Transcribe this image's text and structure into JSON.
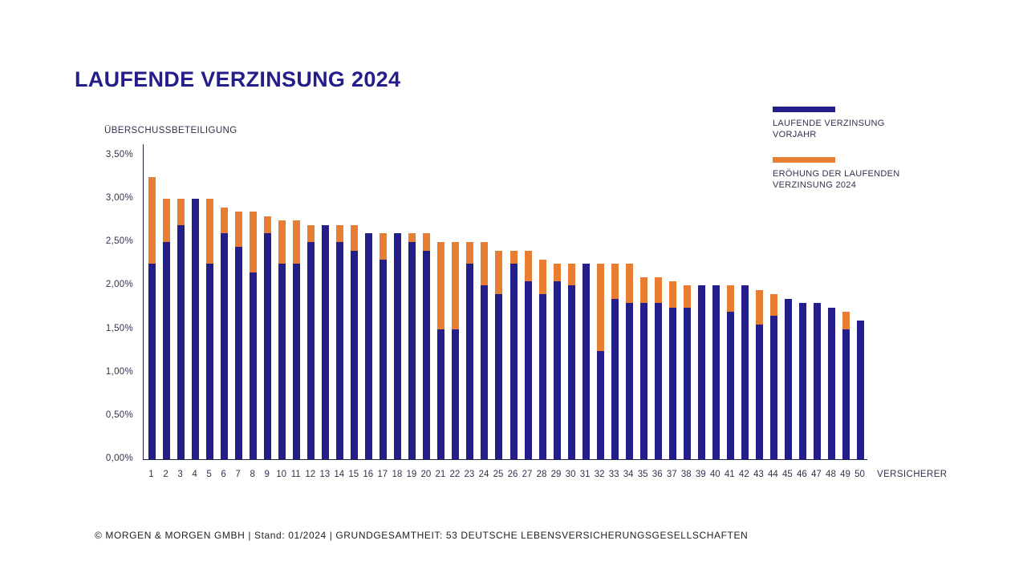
{
  "title": "LAUFENDE VERZINSUNG 2024",
  "axis": {
    "y_label": "ÜBERSCHUSSBETEILIGUNG",
    "x_label": "VERSICHERER",
    "y_ticks": [
      "0,00%",
      "0,50%",
      "1,00%",
      "1,50%",
      "2,00%",
      "2,50%",
      "3,00%",
      "3,50%"
    ]
  },
  "legend": [
    {
      "label": "LAUFENDE VERZINSUNG VORJAHR",
      "color": "#241e8a"
    },
    {
      "label": "ERÖHUNG DER LAUFENDEN VERZINSUNG 2024",
      "color": "#e87e34"
    }
  ],
  "footer": "© MORGEN & MORGEN GMBH | Stand: 01/2024 | GRUNDGESAMTHEIT: 53 DEUTSCHE LEBENSVERSICHERUNGSGESELLSCHAFTEN",
  "colors": {
    "navy": "#241e8a",
    "orange": "#e87e34",
    "axis": "#24244a",
    "ink": "#32324e"
  },
  "chart_data": {
    "type": "bar",
    "stacked": true,
    "title": "LAUFENDE VERZINSUNG 2024",
    "xlabel": "VERSICHERER",
    "ylabel": "ÜBERSCHUSSBETEILIGUNG",
    "ylim": [
      0,
      3.5
    ],
    "y_tick_step": 0.5,
    "grid": false,
    "legend_position": "top-right",
    "categories": [
      1,
      2,
      3,
      4,
      5,
      6,
      7,
      8,
      9,
      10,
      11,
      12,
      13,
      14,
      15,
      16,
      17,
      18,
      19,
      20,
      21,
      22,
      23,
      24,
      25,
      26,
      27,
      28,
      29,
      30,
      31,
      32,
      33,
      34,
      35,
      36,
      37,
      38,
      39,
      40,
      41,
      42,
      43,
      44,
      45,
      46,
      47,
      48,
      49,
      50
    ],
    "series": [
      {
        "name": "LAUFENDE VERZINSUNG VORJAHR",
        "color": "#241e8a",
        "values": [
          2.25,
          2.5,
          2.7,
          3.0,
          2.25,
          2.6,
          2.45,
          2.15,
          2.6,
          2.25,
          2.25,
          2.5,
          2.7,
          2.5,
          2.4,
          2.6,
          2.3,
          2.6,
          2.5,
          2.4,
          1.5,
          1.5,
          2.25,
          2.0,
          1.9,
          2.25,
          2.05,
          1.9,
          2.05,
          2.0,
          2.25,
          1.25,
          1.85,
          1.8,
          1.8,
          1.8,
          1.75,
          1.75,
          2.0,
          2.0,
          1.7,
          2.0,
          1.55,
          1.65,
          1.85,
          1.8,
          1.8,
          1.75,
          1.5,
          1.6
        ]
      },
      {
        "name": "ERÖHUNG DER LAUFENDEN VERZINSUNG 2024",
        "color": "#e87e34",
        "values": [
          1.0,
          0.5,
          0.3,
          0.0,
          0.75,
          0.3,
          0.4,
          0.7,
          0.2,
          0.5,
          0.5,
          0.2,
          0.0,
          0.2,
          0.3,
          0.0,
          0.3,
          0.0,
          0.1,
          0.2,
          1.0,
          1.0,
          0.25,
          0.5,
          0.5,
          0.15,
          0.35,
          0.4,
          0.2,
          0.25,
          0.0,
          1.0,
          0.4,
          0.45,
          0.3,
          0.3,
          0.3,
          0.25,
          0.0,
          0.0,
          0.3,
          0.0,
          0.4,
          0.25,
          0.0,
          0.0,
          0.0,
          0.0,
          0.2,
          0.0
        ]
      }
    ],
    "totals": [
      3.25,
      3.0,
      3.0,
      3.0,
      3.0,
      2.9,
      2.85,
      2.85,
      2.8,
      2.75,
      2.75,
      2.7,
      2.7,
      2.7,
      2.7,
      2.6,
      2.6,
      2.6,
      2.6,
      2.6,
      2.5,
      2.5,
      2.5,
      2.5,
      2.4,
      2.4,
      2.4,
      2.3,
      2.25,
      2.25,
      2.25,
      2.25,
      2.25,
      2.25,
      2.1,
      2.1,
      2.05,
      2.0,
      2.0,
      2.0,
      2.0,
      2.0,
      1.95,
      1.9,
      1.85,
      1.8,
      1.8,
      1.75,
      1.7,
      1.6
    ]
  }
}
